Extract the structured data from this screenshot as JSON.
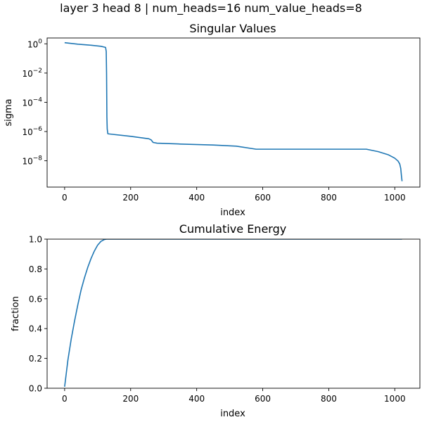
{
  "figure": {
    "suptitle": "layer 3 head 8 | num_heads=16 num_value_heads=8"
  },
  "chart_data": [
    {
      "type": "line",
      "title": "Singular Values",
      "xlabel": "index",
      "ylabel": "sigma",
      "yscale": "log",
      "xlim": [
        -53,
        1076
      ],
      "ylim_log10": [
        -9.8,
        0.4
      ],
      "xticks": [
        0,
        200,
        400,
        600,
        800,
        1000
      ],
      "yticks_exp": [
        0,
        -2,
        -4,
        -6,
        -8
      ],
      "ytick_labels": [
        "10^0",
        "10^-2",
        "10^-4",
        "10^-6",
        "10^-8"
      ],
      "grid": false,
      "line_color": "#1f77b4",
      "series": [
        {
          "x": [
            0,
            40,
            80,
            110,
            124,
            126,
            127,
            128,
            129,
            131,
            200,
            255,
            262,
            268,
            280,
            350,
            450,
            520,
            580,
            650,
            800,
            914,
            950,
            980,
            1000,
            1010,
            1015,
            1018,
            1020,
            1022
          ],
          "y": [
            1.2,
            0.95,
            0.8,
            0.68,
            0.57,
            0.3,
            0.01,
            1e-05,
            1.5e-06,
            7e-07,
            4.7e-07,
            3.2e-07,
            2.7e-07,
            1.8e-07,
            1.6e-07,
            1.4e-07,
            1.2e-07,
            1e-07,
            6.2e-08,
            6.2e-08,
            6.2e-08,
            6.2e-08,
            4.2e-08,
            2.6e-08,
            1.5e-08,
            9.5e-09,
            6e-09,
            3e-09,
            1e-09,
            4e-10
          ]
        }
      ]
    },
    {
      "type": "line",
      "title": "Cumulative Energy",
      "xlabel": "index",
      "ylabel": "fraction",
      "xlim": [
        -53,
        1076
      ],
      "ylim": [
        0.0,
        1.0
      ],
      "xticks": [
        0,
        200,
        400,
        600,
        800,
        1000
      ],
      "yticks": [
        0.0,
        0.2,
        0.4,
        0.6,
        0.8,
        1.0
      ],
      "ytick_labels": [
        "0.0",
        "0.2",
        "0.4",
        "0.6",
        "0.8",
        "1.0"
      ],
      "grid": false,
      "line_color": "#1f77b4",
      "series": [
        {
          "x": [
            0,
            5,
            10,
            20,
            30,
            40,
            50,
            60,
            70,
            80,
            90,
            100,
            110,
            120,
            127,
            1022
          ],
          "y": [
            0.01,
            0.1,
            0.19,
            0.33,
            0.45,
            0.56,
            0.66,
            0.74,
            0.81,
            0.87,
            0.92,
            0.96,
            0.985,
            0.997,
            1.0,
            1.0
          ]
        }
      ]
    }
  ]
}
